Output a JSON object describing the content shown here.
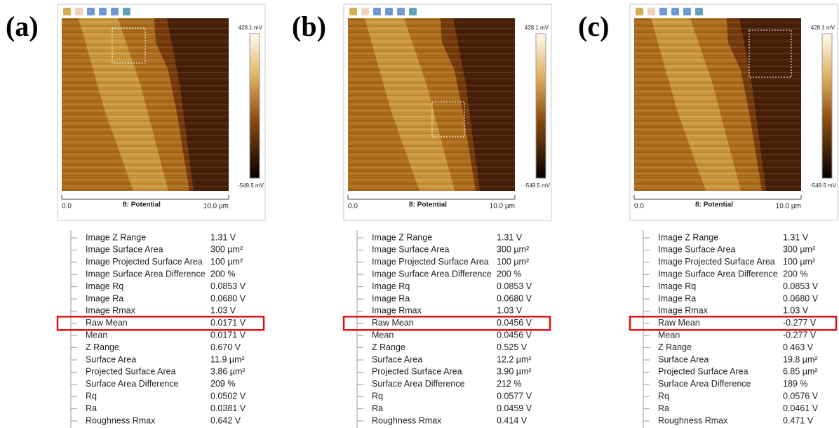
{
  "panels": [
    {
      "label": "(a)",
      "scale_max": "428.1 mV",
      "scale_min": "-549.5 mV",
      "x_start": "0.0",
      "channel": "8: Potential",
      "x_end": "10.0 µm",
      "highlight_row": 7,
      "rows": [
        [
          "Image Z Range",
          "1.31 V"
        ],
        [
          "Image Surface Area",
          "300 µm²"
        ],
        [
          "Image Projected Surface Area",
          "100 µm²"
        ],
        [
          "Image Surface Area Difference",
          "200 %"
        ],
        [
          "Image Rq",
          "0.0853 V"
        ],
        [
          "Image Ra",
          "0.0680 V"
        ],
        [
          "Image Rmax",
          "1.03 V"
        ],
        [
          "Raw Mean",
          "0.0171 V"
        ],
        [
          "Mean",
          "0.0171 V"
        ],
        [
          "Z Range",
          "0.670 V"
        ],
        [
          "Surface Area",
          "11.9 µm²"
        ],
        [
          "Projected Surface Area",
          "3.86 µm²"
        ],
        [
          "Surface Area Difference",
          "209 %"
        ],
        [
          "Rq",
          "0.0502 V"
        ],
        [
          "Ra",
          "0.0381 V"
        ],
        [
          "Roughness Rmax",
          "0.642 V"
        ]
      ]
    },
    {
      "label": "(b)",
      "scale_max": "428.1 mV",
      "scale_min": "-549.5 mV",
      "x_start": "0.0",
      "channel": "8: Potential",
      "x_end": "10.0 µm",
      "highlight_row": 7,
      "rows": [
        [
          "Image Z Range",
          "1.31 V"
        ],
        [
          "Image Surface Area",
          "300 µm²"
        ],
        [
          "Image Projected Surface Area",
          "100 µm²"
        ],
        [
          "Image Surface Area Difference",
          "200 %"
        ],
        [
          "Image Rq",
          "0.0853 V"
        ],
        [
          "Image Ra",
          "0.0680 V"
        ],
        [
          "Image Rmax",
          "1.03 V"
        ],
        [
          "Raw Mean",
          "0.0456 V"
        ],
        [
          "Mean",
          "0.0456 V"
        ],
        [
          "Z Range",
          "0.525 V"
        ],
        [
          "Surface Area",
          "12.2 µm²"
        ],
        [
          "Projected Surface Area",
          "3.90 µm²"
        ],
        [
          "Surface Area Difference",
          "212 %"
        ],
        [
          "Rq",
          "0.0577 V"
        ],
        [
          "Ra",
          "0.0459 V"
        ],
        [
          "Roughness Rmax",
          "0.414 V"
        ]
      ]
    },
    {
      "label": "(c)",
      "scale_max": "428.1 mV",
      "scale_min": "-549.5 mV",
      "x_start": "0.0",
      "channel": "8: Potential",
      "x_end": "10.0 µm",
      "highlight_row": 7,
      "rows": [
        [
          "Image Z Range",
          "1.31 V"
        ],
        [
          "Image Surface Area",
          "300 µm²"
        ],
        [
          "Image Projected Surface Area",
          "100 µm²"
        ],
        [
          "Image Surface Area Difference",
          "200 %"
        ],
        [
          "Image Rq",
          "0.0853 V"
        ],
        [
          "Image Ra",
          "0.0680 V"
        ],
        [
          "Image Rmax",
          "1.03 V"
        ],
        [
          "Raw Mean",
          "-0.277 V"
        ],
        [
          "Mean",
          "-0.277 V"
        ],
        [
          "Z Range",
          "0.463 V"
        ],
        [
          "Surface Area",
          "19.8 µm²"
        ],
        [
          "Projected Surface Area",
          "6.85 µm²"
        ],
        [
          "Surface Area Difference",
          "189 %"
        ],
        [
          "Rq",
          "0.0576 V"
        ],
        [
          "Ra",
          "0.0461 V"
        ],
        [
          "Roughness Rmax",
          "0.471 V"
        ]
      ]
    }
  ]
}
